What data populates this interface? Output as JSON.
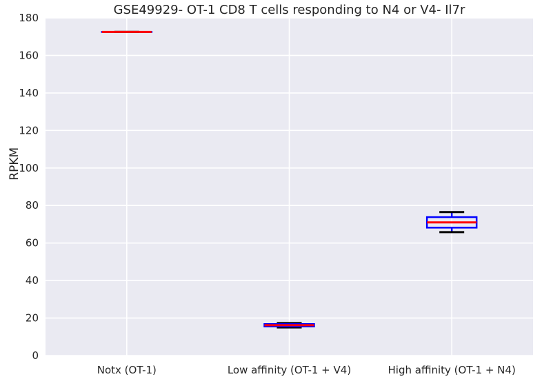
{
  "chart_data": {
    "type": "box",
    "title": "GSE49929- OT-1 CD8 T cells responding to N4 or V4- Il7r",
    "xlabel": "",
    "ylabel": "RPKM",
    "ylim": [
      0,
      180
    ],
    "yticks": [
      0,
      20,
      40,
      60,
      80,
      100,
      120,
      140,
      160,
      180
    ],
    "grid": true,
    "categories": [
      "Notx (OT-1)",
      "Low affinity (OT-1 + V4)",
      "High affinity (OT-1 + N4)"
    ],
    "boxes": [
      {
        "category": "Notx (OT-1)",
        "whisker_low": 172.5,
        "q1": 172.5,
        "median": 172.5,
        "q3": 172.5,
        "whisker_high": 172.5
      },
      {
        "category": "Low affinity (OT-1 + V4)",
        "whisker_low": 15.0,
        "q1": 15.5,
        "median": 16.2,
        "q3": 16.8,
        "whisker_high": 17.3
      },
      {
        "category": "High affinity (OT-1 + N4)",
        "whisker_low": 65.8,
        "q1": 68.2,
        "median": 71.0,
        "q3": 73.8,
        "whisker_high": 76.5
      }
    ],
    "colors": {
      "background": "#eaeaf2",
      "grid": "#ffffff",
      "box": "#0000ff",
      "median": "#ff0000",
      "whisker": "#000000"
    }
  }
}
